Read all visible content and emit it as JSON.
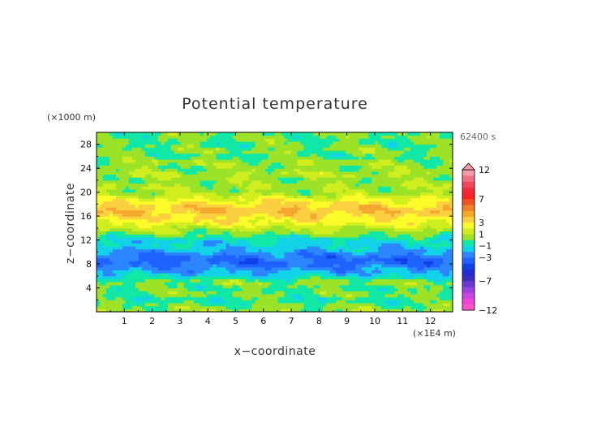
{
  "chart_data": {
    "type": "heatmap",
    "title": "Potential temperature",
    "xlabel": "x−coordinate",
    "ylabel": "z−coordinate",
    "x_unit": "(×1E4 m)",
    "y_unit": "(×1000 m)",
    "time_label": "62400 s",
    "xlim": [
      0,
      12.8
    ],
    "ylim": [
      0,
      30
    ],
    "x_ticks": [
      "1",
      "2",
      "3",
      "4",
      "5",
      "6",
      "7",
      "8",
      "9",
      "10",
      "11",
      "12"
    ],
    "y_ticks": [
      "4",
      "8",
      "12",
      "16",
      "20",
      "24",
      "28"
    ],
    "colorbar": {
      "labels": [
        "12",
        "7",
        "3",
        "1",
        "−1",
        "−3",
        "−7",
        "−12"
      ],
      "label_values": [
        12,
        7,
        3,
        1,
        -1,
        -3,
        -7,
        -12
      ],
      "levels": [
        -12,
        -11,
        -10,
        -9,
        -8,
        -7,
        -6,
        -5,
        -4,
        -3,
        -2,
        -1,
        0,
        1,
        2,
        3,
        4,
        5,
        6,
        7,
        8,
        9,
        10,
        11,
        12
      ],
      "colors": [
        "#ff55c8",
        "#ee44d8",
        "#cc44e0",
        "#9b40dc",
        "#6a3ad0",
        "#3c2ec4",
        "#1f2ed0",
        "#0f40e8",
        "#1e62ff",
        "#2c86ff",
        "#12d2e8",
        "#12e8a6",
        "#9ce226",
        "#d0ee1e",
        "#fbfb2a",
        "#fbd040",
        "#f4a82e",
        "#f08228",
        "#f05420",
        "#ff2020",
        "#f22a3c",
        "#f04860",
        "#f06e82",
        "#f59aa8"
      ]
    },
    "profile": {
      "z": [
        0,
        1,
        2,
        3,
        4,
        5,
        6,
        7,
        8,
        9,
        10,
        11,
        12,
        13,
        14,
        15,
        16,
        17,
        18,
        19,
        20,
        21,
        22,
        23,
        24,
        25,
        26,
        27,
        28,
        29,
        30
      ],
      "value": [
        0.6,
        0.2,
        -0.6,
        0.3,
        -0.3,
        0.5,
        -1.3,
        -2.2,
        -3.2,
        -3.3,
        -2.2,
        -1.4,
        -1.3,
        0.2,
        1.1,
        2.5,
        3.1,
        3.9,
        3.1,
        2.0,
        0.5,
        0.9,
        0.3,
        1.0,
        0.2,
        0.8,
        -0.3,
        0.4,
        -0.2,
        0.1,
        0.0
      ]
    }
  }
}
